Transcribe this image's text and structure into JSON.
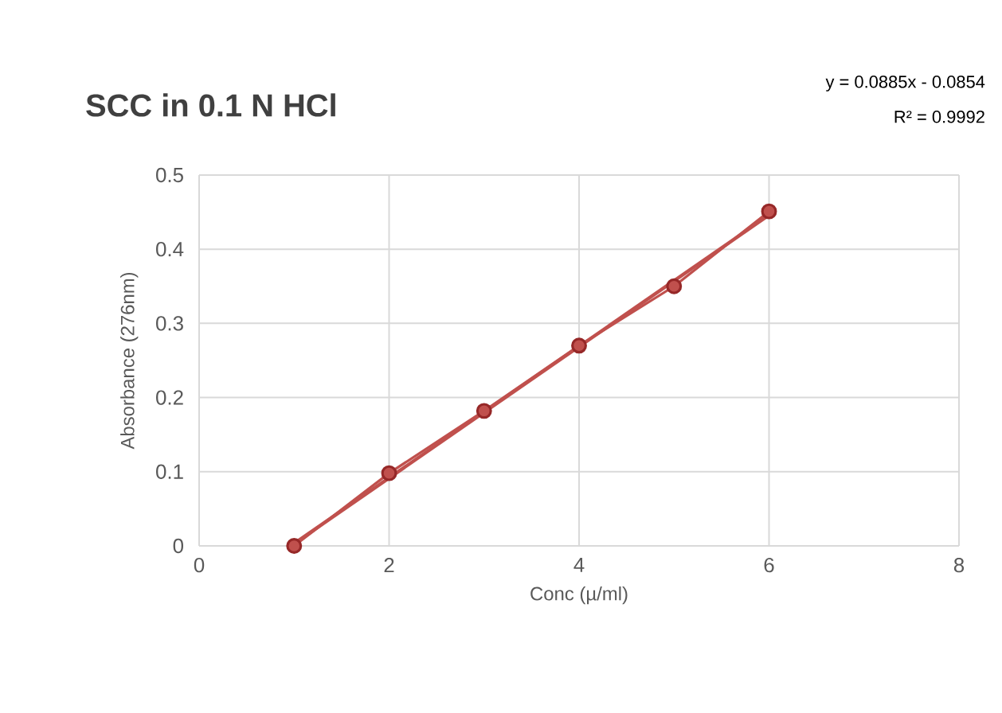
{
  "chart_data": {
    "type": "line",
    "title": "SCC in 0.1 N HCl",
    "xlabel": "Conc (µ/ml)",
    "ylabel": "Absorbance (276nm)",
    "annotations": [
      "y = 0.0885x - 0.0854",
      "R² = 0.9992"
    ],
    "series": [
      {
        "color": "#c0504d",
        "marker": "circle",
        "x": [
          1,
          2,
          3,
          4,
          5,
          6
        ],
        "values": [
          0,
          0.098,
          0.182,
          0.27,
          0.35,
          0.451
        ]
      },
      {
        "type": "line",
        "color": "#c0504d",
        "marker": "none",
        "x": [
          1,
          6
        ],
        "values": [
          0.003,
          0.446
        ]
      }
    ],
    "xlim": [
      0,
      8
    ],
    "xticks": [
      0,
      2,
      4,
      6,
      8
    ],
    "ylim": [
      0,
      0.5
    ],
    "yticks": [
      0,
      0.1,
      0.2,
      0.3,
      0.4,
      0.5
    ],
    "grid": true
  }
}
